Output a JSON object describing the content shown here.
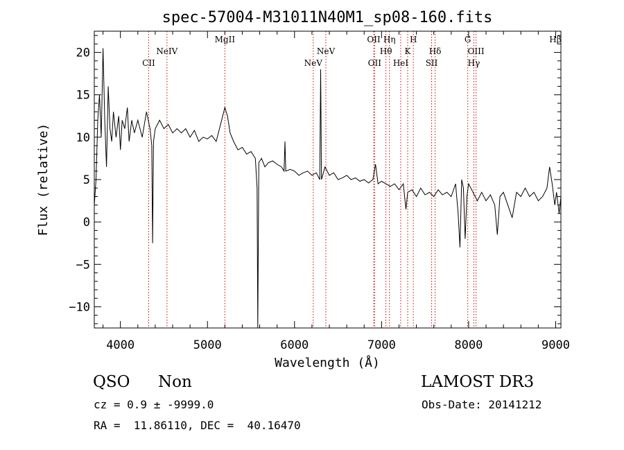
{
  "chart_data": {
    "type": "line",
    "title": "spec-57004-M31011N40M1_sp08-160.fits",
    "xlabel": "Wavelength (Å)",
    "ylabel": "Flux (relative)",
    "xlim": [
      3700,
      9060
    ],
    "ylim": [
      -12.5,
      22.5
    ],
    "xticks": [
      4000,
      5000,
      6000,
      7000,
      8000,
      9000
    ],
    "yticks": [
      -10,
      -5,
      0,
      5,
      10,
      15,
      20
    ],
    "line_color": "#000000",
    "marker_color": "#cc0000",
    "series": [
      {
        "name": "flux",
        "points": [
          [
            3700,
            2.0
          ],
          [
            3720,
            5.0
          ],
          [
            3740,
            12.0
          ],
          [
            3760,
            15.0
          ],
          [
            3780,
            10.0
          ],
          [
            3800,
            20.5
          ],
          [
            3820,
            12.0
          ],
          [
            3840,
            6.5
          ],
          [
            3860,
            16.0
          ],
          [
            3880,
            11.0
          ],
          [
            3900,
            9.5
          ],
          [
            3920,
            13.0
          ],
          [
            3950,
            10.0
          ],
          [
            3980,
            12.5
          ],
          [
            4000,
            8.5
          ],
          [
            4020,
            12.0
          ],
          [
            4050,
            11.0
          ],
          [
            4080,
            13.5
          ],
          [
            4100,
            9.5
          ],
          [
            4130,
            12.0
          ],
          [
            4160,
            10.5
          ],
          [
            4200,
            12.0
          ],
          [
            4250,
            10.0
          ],
          [
            4300,
            13.0
          ],
          [
            4340,
            11.0
          ],
          [
            4360,
            9.0
          ],
          [
            4370,
            -2.5
          ],
          [
            4380,
            9.5
          ],
          [
            4400,
            11.0
          ],
          [
            4450,
            12.0
          ],
          [
            4500,
            11.0
          ],
          [
            4550,
            11.5
          ],
          [
            4600,
            10.5
          ],
          [
            4650,
            11.0
          ],
          [
            4700,
            10.5
          ],
          [
            4750,
            11.0
          ],
          [
            4800,
            10.0
          ],
          [
            4850,
            10.8
          ],
          [
            4900,
            9.5
          ],
          [
            4950,
            10.0
          ],
          [
            5000,
            9.8
          ],
          [
            5050,
            10.2
          ],
          [
            5100,
            9.5
          ],
          [
            5150,
            11.5
          ],
          [
            5200,
            13.5
          ],
          [
            5230,
            12.5
          ],
          [
            5260,
            10.5
          ],
          [
            5300,
            9.5
          ],
          [
            5350,
            8.5
          ],
          [
            5400,
            8.8
          ],
          [
            5450,
            8.0
          ],
          [
            5500,
            8.3
          ],
          [
            5550,
            7.5
          ],
          [
            5570,
            4.0
          ],
          [
            5578,
            -12.5
          ],
          [
            5590,
            7.0
          ],
          [
            5620,
            7.5
          ],
          [
            5660,
            6.5
          ],
          [
            5700,
            7.0
          ],
          [
            5750,
            7.2
          ],
          [
            5800,
            6.8
          ],
          [
            5850,
            6.5
          ],
          [
            5880,
            6.0
          ],
          [
            5890,
            9.5
          ],
          [
            5900,
            6.0
          ],
          [
            5950,
            6.2
          ],
          [
            6000,
            6.0
          ],
          [
            6050,
            5.5
          ],
          [
            6100,
            5.8
          ],
          [
            6150,
            6.0
          ],
          [
            6200,
            5.5
          ],
          [
            6250,
            5.8
          ],
          [
            6290,
            5.0
          ],
          [
            6300,
            18.0
          ],
          [
            6310,
            5.0
          ],
          [
            6350,
            6.5
          ],
          [
            6400,
            5.5
          ],
          [
            6450,
            5.8
          ],
          [
            6500,
            5.0
          ],
          [
            6550,
            5.2
          ],
          [
            6600,
            5.5
          ],
          [
            6650,
            5.0
          ],
          [
            6700,
            5.2
          ],
          [
            6750,
            4.8
          ],
          [
            6800,
            5.0
          ],
          [
            6850,
            4.6
          ],
          [
            6900,
            5.0
          ],
          [
            6930,
            6.8
          ],
          [
            6960,
            4.5
          ],
          [
            7000,
            4.8
          ],
          [
            7050,
            4.5
          ],
          [
            7100,
            4.2
          ],
          [
            7150,
            4.5
          ],
          [
            7200,
            3.8
          ],
          [
            7250,
            4.5
          ],
          [
            7280,
            1.5
          ],
          [
            7300,
            3.5
          ],
          [
            7350,
            3.8
          ],
          [
            7400,
            3.0
          ],
          [
            7450,
            4.0
          ],
          [
            7500,
            3.2
          ],
          [
            7550,
            3.5
          ],
          [
            7600,
            3.0
          ],
          [
            7650,
            3.8
          ],
          [
            7700,
            3.2
          ],
          [
            7750,
            3.5
          ],
          [
            7800,
            3.0
          ],
          [
            7850,
            4.5
          ],
          [
            7880,
            1.0
          ],
          [
            7900,
            -3.0
          ],
          [
            7920,
            5.0
          ],
          [
            7940,
            4.0
          ],
          [
            7960,
            -2.0
          ],
          [
            7980,
            3.0
          ],
          [
            8000,
            4.5
          ],
          [
            8050,
            3.5
          ],
          [
            8100,
            2.5
          ],
          [
            8150,
            3.5
          ],
          [
            8200,
            2.5
          ],
          [
            8250,
            3.2
          ],
          [
            8300,
            2.0
          ],
          [
            8330,
            -1.5
          ],
          [
            8360,
            3.0
          ],
          [
            8400,
            3.5
          ],
          [
            8450,
            2.0
          ],
          [
            8500,
            0.5
          ],
          [
            8550,
            3.5
          ],
          [
            8600,
            3.0
          ],
          [
            8650,
            4.0
          ],
          [
            8700,
            3.0
          ],
          [
            8750,
            3.5
          ],
          [
            8800,
            2.5
          ],
          [
            8850,
            3.0
          ],
          [
            8900,
            4.0
          ],
          [
            8930,
            6.5
          ],
          [
            8960,
            4.5
          ],
          [
            8990,
            2.0
          ],
          [
            9010,
            3.5
          ],
          [
            9040,
            1.0
          ],
          [
            9060,
            3.0
          ]
        ]
      }
    ],
    "line_markers": [
      {
        "label": "CII",
        "x": 4325,
        "row": 2
      },
      {
        "label": "NeIV",
        "x": 4535,
        "row": 1
      },
      {
        "label": "MgII",
        "x": 5200,
        "row": 0
      },
      {
        "label": "NeV",
        "x": 6215,
        "row": 2
      },
      {
        "label": "NeV",
        "x": 6360,
        "row": 1
      },
      {
        "label": "OII",
        "x": 6910,
        "row": 0
      },
      {
        "label": "OII",
        "x": 6920,
        "row": 2
      },
      {
        "label": "Hη",
        "x": 7090,
        "row": 0
      },
      {
        "label": "Hθ",
        "x": 7050,
        "row": 1
      },
      {
        "label": "HeI",
        "x": 7220,
        "row": 2
      },
      {
        "label": "K",
        "x": 7300,
        "row": 1
      },
      {
        "label": "H",
        "x": 7365,
        "row": 0
      },
      {
        "label": "SII",
        "x": 7575,
        "row": 2
      },
      {
        "label": "Hδ",
        "x": 7615,
        "row": 1
      },
      {
        "label": "G",
        "x": 7990,
        "row": 0
      },
      {
        "label": "OIII",
        "x": 8085,
        "row": 1
      },
      {
        "label": "Hγ",
        "x": 8060,
        "row": 2
      },
      {
        "label": "Hβ",
        "x": 9060,
        "row": 0
      }
    ]
  },
  "info": {
    "class_label": "QSO",
    "subclass_label": "Non",
    "survey_label": "LAMOST DR3",
    "cz_text": "cz = 0.9 ± -9999.0",
    "obs_date_text": "Obs-Date: 20141212",
    "coord_text": "RA =  11.86110, DEC =  40.16470"
  }
}
